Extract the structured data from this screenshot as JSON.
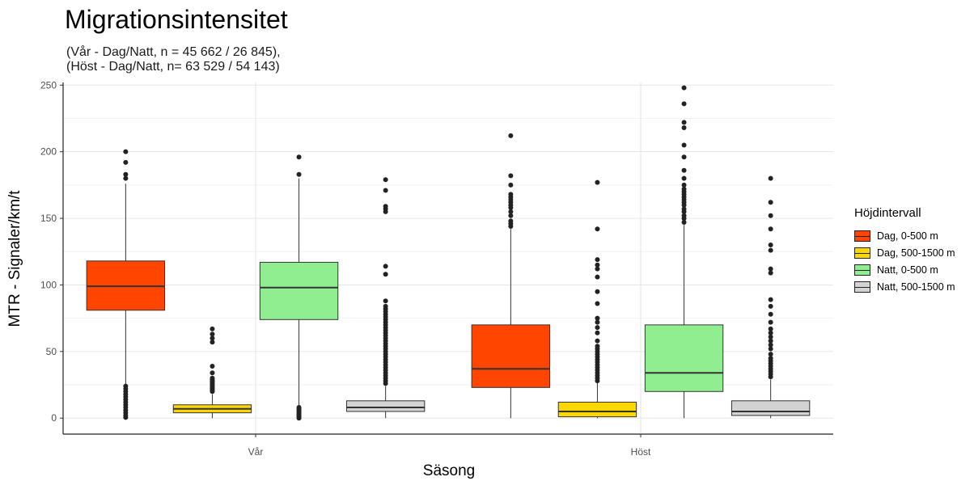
{
  "chart_data": {
    "type": "box",
    "title": "Migrationsintensitet",
    "subtitle": [
      "(Vår - Dag/Natt, n = 45 662 / 26 845),",
      "(Höst - Dag/Natt, n= 63 529 / 54 143)"
    ],
    "xlabel": "Säsong",
    "ylabel": "MTR - Signaler/km/t",
    "categories": [
      "Vår",
      "Höst"
    ],
    "ylim": [
      -12,
      252
    ],
    "yticks": [
      0,
      50,
      100,
      150,
      200,
      250
    ],
    "grid": true,
    "legend": {
      "title": "Höjdintervall",
      "position": "right"
    },
    "series": [
      {
        "name": "Dag, 0-500 m",
        "color": "#ff4500",
        "boxes": [
          {
            "category": "Vår",
            "min": 0,
            "q1": 81,
            "median": 99,
            "q3": 118,
            "max": 176,
            "outliers": [
              0.5,
              2,
              4,
              6,
              8,
              10,
              12,
              14,
              16,
              18,
              20,
              22,
              24,
              180,
              183,
              192,
              200
            ]
          },
          {
            "category": "Höst",
            "min": 0,
            "q1": 23,
            "median": 37,
            "q3": 70,
            "max": 142,
            "outliers": [
              144,
              146,
              148,
              152,
              155,
              158,
              160,
              162,
              164,
              166,
              168,
              175,
              182,
              212
            ]
          }
        ]
      },
      {
        "name": "Dag, 500-1500 m",
        "color": "#ffd700",
        "boxes": [
          {
            "category": "Vår",
            "min": 0,
            "q1": 4,
            "median": 7,
            "q3": 10,
            "max": 18,
            "outliers": [
              20,
              21,
              22,
              23,
              24,
              25,
              26,
              27,
              28,
              29,
              30,
              34,
              39,
              57,
              60,
              63,
              67
            ]
          },
          {
            "category": "Höst",
            "min": 0,
            "q1": 1,
            "median": 5,
            "q3": 12,
            "max": 27,
            "outliers": [
              28,
              30,
              32,
              34,
              36,
              38,
              40,
              42,
              44,
              46,
              48,
              50,
              52,
              54,
              58,
              64,
              68,
              72,
              75,
              86,
              95,
              106,
              112,
              115,
              119,
              142,
              177
            ]
          }
        ]
      },
      {
        "name": "Natt, 0-500 m",
        "color": "#90ee90",
        "boxes": [
          {
            "category": "Vår",
            "min": 9,
            "q1": 74,
            "median": 98,
            "q3": 117,
            "max": 180,
            "outliers": [
              0,
              1,
              2,
              3,
              4,
              5,
              6,
              7,
              8,
              183,
              196
            ]
          },
          {
            "category": "Höst",
            "min": 0,
            "q1": 20,
            "median": 34,
            "q3": 70,
            "max": 145,
            "outliers": [
              147,
              150,
              152,
              155,
              157,
              160,
              162,
              164,
              166,
              168,
              170,
              172,
              175,
              180,
              186,
              196,
              205,
              218,
              222,
              236,
              248
            ]
          }
        ]
      },
      {
        "name": "Natt, 500-1500 m",
        "color": "#d3d3d3",
        "boxes": [
          {
            "category": "Vår",
            "min": 0,
            "q1": 5,
            "median": 8,
            "q3": 13,
            "max": 24,
            "outliers": [
              26,
              28,
              30,
              32,
              34,
              36,
              38,
              40,
              42,
              44,
              46,
              48,
              50,
              52,
              54,
              56,
              58,
              60,
              62,
              64,
              66,
              68,
              70,
              72,
              74,
              76,
              78,
              80,
              82,
              84,
              88,
              108,
              114,
              155,
              157,
              159,
              171,
              179
            ]
          },
          {
            "category": "Höst",
            "min": 0,
            "q1": 2,
            "median": 5,
            "q3": 13,
            "max": 29,
            "outliers": [
              31,
              33,
              35,
              37,
              39,
              41,
              43,
              45,
              48,
              52,
              55,
              58,
              61,
              64,
              67,
              72,
              78,
              84,
              89,
              109,
              112,
              126,
              130,
              142,
              152,
              162,
              180
            ]
          }
        ]
      }
    ]
  }
}
